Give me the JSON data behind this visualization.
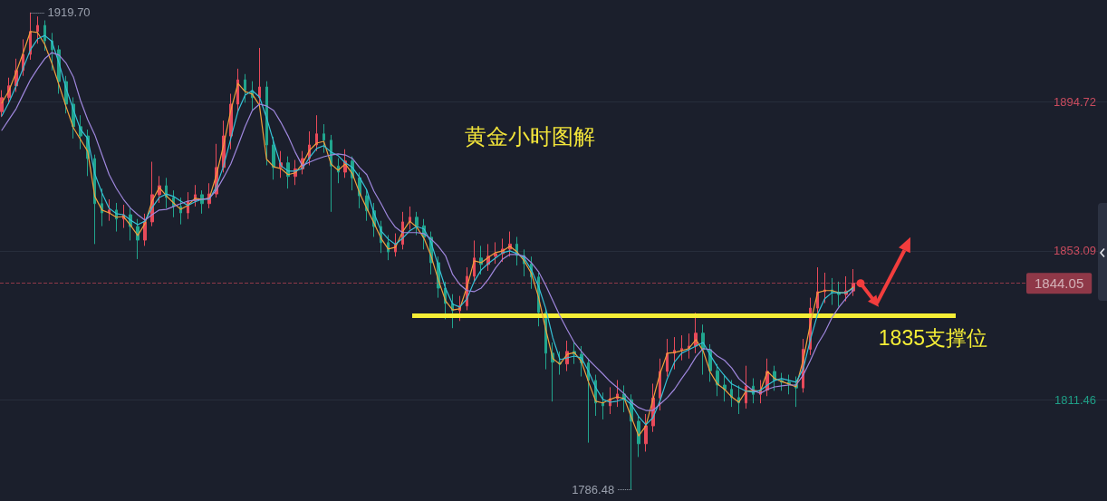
{
  "chart_data": {
    "type": "candlestick",
    "title": "黄金小时图解",
    "categories": [
      null,
      null,
      null,
      null,
      null,
      null,
      null,
      null,
      null,
      null,
      null,
      null,
      null,
      null,
      null,
      null,
      null,
      null,
      null,
      null,
      null,
      null,
      null,
      null,
      null,
      null,
      null,
      null,
      null,
      null,
      null,
      null,
      null,
      null,
      null,
      null,
      null,
      null,
      null,
      null,
      null,
      null,
      null,
      null,
      null,
      null,
      null,
      null,
      null,
      null,
      null,
      null,
      null,
      null,
      null,
      null,
      null,
      null,
      null,
      null,
      null,
      null,
      null,
      null,
      null,
      null,
      null,
      null,
      null,
      null,
      null,
      null,
      null,
      null,
      null,
      null,
      null,
      null,
      null,
      null,
      null,
      null,
      null,
      null,
      null,
      null,
      null,
      null,
      null,
      null,
      null,
      null,
      null,
      null,
      null,
      null,
      null,
      null,
      null,
      null,
      null,
      null,
      null,
      null,
      null,
      null,
      null,
      null,
      null,
      null,
      null,
      null,
      null,
      null,
      null,
      null,
      null,
      null,
      null,
      null
    ],
    "ohlc": [
      [
        1892.0,
        1898.0,
        1890.5,
        1895.9
      ],
      [
        1895.9,
        1901.5,
        1894.2,
        1899.2
      ],
      [
        1899.2,
        1906.8,
        1897.5,
        1903.5
      ],
      [
        1903.5,
        1912.2,
        1902.0,
        1908.0
      ],
      [
        1908.0,
        1919.7,
        1906.5,
        1914.4
      ],
      [
        1914.4,
        1918.6,
        1911.0,
        1916.1
      ],
      [
        1916.1,
        1917.5,
        1909.0,
        1911.8
      ],
      [
        1911.8,
        1914.0,
        1903.5,
        1909.3
      ],
      [
        1909.3,
        1910.5,
        1897.0,
        1900.4
      ],
      [
        1900.4,
        1902.0,
        1891.5,
        1894.1
      ],
      [
        1894.1,
        1896.0,
        1884.5,
        1887.8
      ],
      [
        1887.8,
        1891.0,
        1881.5,
        1885.2
      ],
      [
        1885.2,
        1887.0,
        1874.0,
        1878.9
      ],
      [
        1878.9,
        1880.0,
        1855.0,
        1866.3
      ],
      [
        1866.3,
        1870.5,
        1860.0,
        1863.7
      ],
      [
        1863.7,
        1867.5,
        1861.5,
        1864.5
      ],
      [
        1864.5,
        1866.5,
        1858.5,
        1862.0
      ],
      [
        1862.0,
        1866.0,
        1859.5,
        1863.2
      ],
      [
        1863.2,
        1865.0,
        1856.0,
        1859.9
      ],
      [
        1859.9,
        1862.0,
        1850.8,
        1856.1
      ],
      [
        1856.1,
        1863.5,
        1854.5,
        1861.2
      ],
      [
        1861.2,
        1878.0,
        1860.0,
        1868.8
      ],
      [
        1868.8,
        1874.0,
        1866.5,
        1871.3
      ],
      [
        1871.3,
        1873.5,
        1865.0,
        1868.0
      ],
      [
        1868.0,
        1870.0,
        1862.5,
        1865.5
      ],
      [
        1865.5,
        1868.0,
        1860.5,
        1863.7
      ],
      [
        1863.7,
        1869.5,
        1862.0,
        1867.0
      ],
      [
        1867.0,
        1871.5,
        1865.5,
        1868.8
      ],
      [
        1868.8,
        1870.0,
        1863.5,
        1866.3
      ],
      [
        1866.3,
        1872.0,
        1865.0,
        1869.0
      ],
      [
        1869.0,
        1883.0,
        1868.0,
        1876.4
      ],
      [
        1876.4,
        1889.5,
        1875.0,
        1885.2
      ],
      [
        1885.2,
        1897.0,
        1881.5,
        1894.1
      ],
      [
        1894.1,
        1904.0,
        1892.0,
        1900.9
      ],
      [
        1900.9,
        1902.5,
        1894.5,
        1897.9
      ],
      [
        1897.9,
        1900.5,
        1892.5,
        1895.9
      ],
      [
        1895.9,
        1909.8,
        1893.5,
        1898.9
      ],
      [
        1898.9,
        1900.5,
        1877.0,
        1882.7
      ],
      [
        1882.7,
        1885.0,
        1873.0,
        1876.4
      ],
      [
        1876.4,
        1881.0,
        1873.5,
        1877.7
      ],
      [
        1877.7,
        1879.5,
        1870.5,
        1873.9
      ],
      [
        1873.9,
        1878.5,
        1871.5,
        1876.0
      ],
      [
        1876.0,
        1881.0,
        1874.5,
        1878.9
      ],
      [
        1878.9,
        1886.5,
        1877.0,
        1882.7
      ],
      [
        1882.7,
        1891.0,
        1881.0,
        1885.8
      ],
      [
        1885.8,
        1888.5,
        1880.5,
        1884.0
      ],
      [
        1884.0,
        1885.5,
        1864.0,
        1876.8
      ],
      [
        1876.8,
        1879.0,
        1872.0,
        1875.1
      ],
      [
        1875.1,
        1881.5,
        1873.5,
        1878.2
      ],
      [
        1878.2,
        1879.5,
        1870.0,
        1873.5
      ],
      [
        1873.5,
        1875.0,
        1865.0,
        1868.5
      ],
      [
        1868.5,
        1870.5,
        1861.5,
        1864.3
      ],
      [
        1864.3,
        1866.5,
        1857.0,
        1859.9
      ],
      [
        1859.9,
        1861.5,
        1852.5,
        1855.4
      ],
      [
        1855.4,
        1857.5,
        1850.5,
        1852.8
      ],
      [
        1852.8,
        1858.0,
        1851.5,
        1854.9
      ],
      [
        1854.9,
        1864.0,
        1853.5,
        1861.2
      ],
      [
        1861.2,
        1865.5,
        1859.0,
        1862.5
      ],
      [
        1862.5,
        1864.0,
        1857.5,
        1860.1
      ],
      [
        1860.1,
        1862.0,
        1853.5,
        1856.9
      ],
      [
        1856.9,
        1858.5,
        1846.5,
        1849.8
      ],
      [
        1849.8,
        1851.5,
        1840.0,
        1842.7
      ],
      [
        1842.7,
        1844.5,
        1834.0,
        1838.4
      ],
      [
        1838.4,
        1841.0,
        1831.5,
        1836.4
      ],
      [
        1836.4,
        1840.5,
        1833.5,
        1837.7
      ],
      [
        1837.7,
        1848.5,
        1836.5,
        1846.0
      ],
      [
        1846.0,
        1856.0,
        1844.5,
        1851.1
      ],
      [
        1851.1,
        1854.5,
        1846.5,
        1849.3
      ],
      [
        1849.3,
        1855.0,
        1847.5,
        1851.6
      ],
      [
        1851.6,
        1855.5,
        1849.5,
        1852.3
      ],
      [
        1852.3,
        1856.5,
        1850.0,
        1853.6
      ],
      [
        1853.6,
        1858.5,
        1851.5,
        1855.0
      ],
      [
        1855.0,
        1857.0,
        1849.0,
        1851.8
      ],
      [
        1851.8,
        1853.5,
        1846.0,
        1849.5
      ],
      [
        1849.5,
        1851.5,
        1842.5,
        1845.8
      ],
      [
        1845.8,
        1847.0,
        1832.0,
        1835.9
      ],
      [
        1835.9,
        1837.0,
        1820.0,
        1824.5
      ],
      [
        1824.5,
        1827.5,
        1811.0,
        1822.0
      ],
      [
        1822.0,
        1825.0,
        1818.5,
        1821.5
      ],
      [
        1821.5,
        1828.0,
        1819.5,
        1825.0
      ],
      [
        1825.0,
        1827.5,
        1821.5,
        1824.2
      ],
      [
        1824.2,
        1826.5,
        1818.0,
        1821.8
      ],
      [
        1821.8,
        1823.0,
        1799.5,
        1816.9
      ],
      [
        1816.9,
        1818.5,
        1807.0,
        1810.6
      ],
      [
        1810.6,
        1813.5,
        1806.0,
        1809.8
      ],
      [
        1809.8,
        1815.0,
        1807.5,
        1811.8
      ],
      [
        1811.8,
        1817.0,
        1809.5,
        1813.1
      ],
      [
        1813.1,
        1815.5,
        1808.0,
        1811.5
      ],
      [
        1811.5,
        1813.0,
        1786.48,
        1805.5
      ],
      [
        1805.5,
        1807.0,
        1795.5,
        1799.2
      ],
      [
        1799.2,
        1807.5,
        1797.0,
        1804.2
      ],
      [
        1804.2,
        1816.0,
        1802.5,
        1812.0
      ],
      [
        1812.0,
        1823.0,
        1808.5,
        1819.4
      ],
      [
        1819.4,
        1828.5,
        1818.0,
        1824.5
      ],
      [
        1824.5,
        1829.0,
        1820.0,
        1825.3
      ],
      [
        1825.3,
        1829.5,
        1822.5,
        1825.8
      ],
      [
        1825.8,
        1830.0,
        1823.0,
        1826.5
      ],
      [
        1826.5,
        1835.8,
        1824.5,
        1830.1
      ],
      [
        1830.1,
        1832.5,
        1818.5,
        1825.5
      ],
      [
        1825.5,
        1827.0,
        1816.5,
        1819.6
      ],
      [
        1819.6,
        1821.5,
        1812.5,
        1815.6
      ],
      [
        1815.6,
        1818.5,
        1811.0,
        1814.4
      ],
      [
        1814.4,
        1817.0,
        1809.5,
        1812.1
      ],
      [
        1812.1,
        1815.5,
        1807.5,
        1810.6
      ],
      [
        1810.6,
        1821.0,
        1809.0,
        1815.3
      ],
      [
        1815.3,
        1817.5,
        1810.5,
        1813.0
      ],
      [
        1813.0,
        1817.0,
        1810.5,
        1814.2
      ],
      [
        1814.2,
        1823.0,
        1812.5,
        1819.4
      ],
      [
        1819.4,
        1821.0,
        1814.0,
        1816.9
      ],
      [
        1816.9,
        1819.0,
        1814.0,
        1816.4
      ],
      [
        1816.4,
        1818.5,
        1813.0,
        1815.8
      ],
      [
        1815.8,
        1818.0,
        1809.5,
        1814.8
      ],
      [
        1814.8,
        1828.5,
        1813.5,
        1825.6
      ],
      [
        1825.6,
        1840.0,
        1824.0,
        1837.1
      ],
      [
        1837.1,
        1848.5,
        1835.5,
        1841.7
      ],
      [
        1841.7,
        1847.0,
        1838.5,
        1842.2
      ],
      [
        1842.2,
        1845.5,
        1838.0,
        1841.5
      ],
      [
        1841.5,
        1844.5,
        1837.5,
        1840.9
      ],
      [
        1840.9,
        1846.0,
        1839.0,
        1841.9
      ],
      [
        1841.9,
        1848.0,
        1840.5,
        1844.05
      ]
    ],
    "colors": [
      "#e84a5a",
      "#e84a5a",
      "#e84a5a",
      "#e84a5a",
      "#e84a5a",
      "#e84a5a",
      "#21a58e",
      "#21a58e",
      "#21a58e",
      "#21a58e",
      "#21a58e",
      "#21a58e",
      "#21a58e",
      "#21a58e",
      "#21a58e",
      "#e84a5a",
      "#21a58e",
      "#e84a5a",
      "#21a58e",
      "#21a58e",
      "#e84a5a",
      "#e84a5a",
      "#e84a5a",
      "#21a58e",
      "#21a58e",
      "#21a58e",
      "#e84a5a",
      "#e84a5a",
      "#21a58e",
      "#e84a5a",
      "#e84a5a",
      "#e84a5a",
      "#e84a5a",
      "#e84a5a",
      "#21a58e",
      "#21a58e",
      "#e84a5a",
      "#21a58e",
      "#21a58e",
      "#e84a5a",
      "#21a58e",
      "#e84a5a",
      "#e84a5a",
      "#e84a5a",
      "#e84a5a",
      "#21a58e",
      "#21a58e",
      "#21a58e",
      "#e84a5a",
      "#21a58e",
      "#21a58e",
      "#21a58e",
      "#21a58e",
      "#21a58e",
      "#21a58e",
      "#e84a5a",
      "#e84a5a",
      "#e84a5a",
      "#21a58e",
      "#21a58e",
      "#21a58e",
      "#21a58e",
      "#21a58e",
      "#21a58e",
      "#e84a5a",
      "#e84a5a",
      "#e84a5a",
      "#21a58e",
      "#e84a5a",
      "#e84a5a",
      "#e84a5a",
      "#e84a5a",
      "#21a58e",
      "#21a58e",
      "#21a58e",
      "#21a58e",
      "#21a58e",
      "#21a58e",
      "#21a58e",
      "#e84a5a",
      "#21a58e",
      "#21a58e",
      "#21a58e",
      "#21a58e",
      "#21a58e",
      "#e84a5a",
      "#e84a5a",
      "#21a58e",
      "#21a58e",
      "#21a58e",
      "#e84a5a",
      "#e84a5a",
      "#e84a5a",
      "#e84a5a",
      "#e84a5a",
      "#e84a5a",
      "#e84a5a",
      "#e84a5a",
      "#21a58e",
      "#21a58e",
      "#21a58e",
      "#21a58e",
      "#21a58e",
      "#21a58e",
      "#e84a5a",
      "#21a58e",
      "#e84a5a",
      "#e84a5a",
      "#21a58e",
      "#21a58e",
      "#21a58e",
      "#21a58e",
      "#e84a5a",
      "#e84a5a",
      "#e84a5a",
      "#e84a5a",
      "#21a58e",
      "#21a58e",
      "#e84a5a",
      "#e84a5a"
    ],
    "series": [
      {
        "type": "line",
        "color": "#f2a03c",
        "values": [
          1894.4,
          1897.9,
          1903.0,
          1908.5,
          1914.4,
          1914.1,
          1910.8,
          1905.5,
          1899.4,
          1893.3,
          1887.5,
          1884.2,
          1880.9,
          1868.3,
          1864.5,
          1863.7,
          1862.5,
          1862.7,
          1860.2,
          1857.4,
          1860.7,
          1867.0,
          1870.8,
          1868.5,
          1866.5,
          1864.7,
          1865.8,
          1867.8,
          1867.5,
          1867.8,
          1874.4,
          1882.7,
          1892.3,
          1899.9,
          1897.6,
          1896.9,
          1893.8,
          1878.7,
          1876.6,
          1876.1,
          1874.4,
          1874.9,
          1877.4,
          1881.2,
          1883.2,
          1883.7,
          1877.4,
          1875.6,
          1877.4,
          1874.6,
          1869.3,
          1865.0,
          1860.9,
          1856.6,
          1853.6,
          1854.1,
          1858.4,
          1861.4,
          1859.7,
          1856.6,
          1851.6,
          1845.0,
          1839.2,
          1836.6,
          1836.9,
          1843.0,
          1850.3,
          1849.8,
          1851.3,
          1852.6,
          1853.1,
          1854.4,
          1852.8,
          1850.3,
          1846.8,
          1840.2,
          1831.3,
          1823.0,
          1821.4,
          1824.2,
          1824.7,
          1822.2,
          1816.4,
          1811.1,
          1810.6,
          1811.6,
          1812.3,
          1811.8,
          1806.5,
          1801.4,
          1804.2,
          1811.6,
          1818.9,
          1824.5,
          1824.7,
          1825.2,
          1825.8,
          1828.3,
          1825.2,
          1819.2,
          1815.9,
          1814.4,
          1812.3,
          1810.8,
          1813.9,
          1814.1,
          1813.9,
          1819.4,
          1817.4,
          1816.6,
          1815.9,
          1815.1,
          1822.7,
          1832.8,
          1841.4,
          1842.0,
          1842.0,
          1841.4,
          1841.4,
          1843.0
        ]
      },
      {
        "type": "line",
        "color": "#36c2d8",
        "values": [
          1890.8,
          1894.6,
          1899.2,
          1904.2,
          1909.3,
          1912.3,
          1913.3,
          1911.6,
          1905.5,
          1898.4,
          1892.6,
          1887.0,
          1884.5,
          1874.6,
          1869.3,
          1865.0,
          1863.5,
          1863.2,
          1861.7,
          1860.4,
          1861.4,
          1865.2,
          1868.0,
          1869.0,
          1868.3,
          1867.0,
          1865.8,
          1866.8,
          1867.5,
          1867.5,
          1871.1,
          1876.9,
          1884.5,
          1892.1,
          1896.6,
          1897.9,
          1896.1,
          1890.3,
          1883.5,
          1876.9,
          1875.4,
          1875.4,
          1876.1,
          1879.2,
          1881.7,
          1882.5,
          1880.7,
          1879.7,
          1877.7,
          1876.4,
          1873.6,
          1870.1,
          1863.7,
          1858.7,
          1856.4,
          1854.9,
          1856.6,
          1858.7,
          1859.9,
          1859.2,
          1855.4,
          1849.0,
          1842.7,
          1838.2,
          1837.4,
          1839.7,
          1844.5,
          1847.8,
          1849.6,
          1851.1,
          1852.6,
          1853.1,
          1852.3,
          1851.1,
          1847.8,
          1843.2,
          1837.1,
          1828.8,
          1822.7,
          1823.2,
          1823.7,
          1823.2,
          1819.4,
          1814.9,
          1811.6,
          1810.8,
          1811.1,
          1811.8,
          1810.1,
          1806.8,
          1804.5,
          1806.5,
          1811.3,
          1817.4,
          1822.0,
          1824.5,
          1825.5,
          1826.5,
          1827.5,
          1824.0,
          1820.7,
          1818.2,
          1815.9,
          1814.9,
          1813.9,
          1813.6,
          1814.1,
          1815.6,
          1816.9,
          1817.4,
          1816.9,
          1816.4,
          1820.2,
          1828.3,
          1835.4,
          1839.7,
          1841.4,
          1841.4,
          1841.4,
          1842.7
        ]
      },
      {
        "type": "line",
        "color": "#9f87dd",
        "values": [
          1886.8,
          1889.8,
          1892.8,
          1896.9,
          1900.9,
          1904.0,
          1906.8,
          1908.5,
          1907.8,
          1905.5,
          1901.7,
          1895.1,
          1889.8,
          1885.5,
          1879.9,
          1874.4,
          1870.6,
          1867.5,
          1865.0,
          1863.2,
          1861.7,
          1863.2,
          1864.5,
          1864.7,
          1865.5,
          1866.3,
          1867.0,
          1867.3,
          1867.5,
          1867.8,
          1870.1,
          1873.6,
          1877.4,
          1882.5,
          1887.8,
          1892.3,
          1894.1,
          1893.6,
          1892.3,
          1889.0,
          1885.2,
          1880.7,
          1876.9,
          1877.9,
          1878.7,
          1879.4,
          1879.9,
          1880.2,
          1879.9,
          1878.9,
          1876.4,
          1874.4,
          1869.8,
          1866.3,
          1862.5,
          1859.7,
          1858.2,
          1858.2,
          1858.2,
          1857.9,
          1856.4,
          1854.4,
          1851.8,
          1846.5,
          1843.7,
          1842.0,
          1841.7,
          1842.7,
          1845.2,
          1848.3,
          1850.8,
          1852.1,
          1852.1,
          1851.6,
          1849.8,
          1847.3,
          1843.5,
          1839.2,
          1834.9,
          1831.1,
          1827.5,
          1825.0,
          1822.7,
          1820.7,
          1818.7,
          1816.6,
          1814.9,
          1813.1,
          1810.8,
          1809.3,
          1808.5,
          1808.5,
          1810.3,
          1812.1,
          1814.4,
          1817.4,
          1820.2,
          1823.5,
          1825.8,
          1825.5,
          1823.7,
          1822.5,
          1820.4,
          1817.4,
          1815.6,
          1814.1,
          1813.3,
          1814.4,
          1815.1,
          1815.4,
          1815.6,
          1815.6,
          1818.4,
          1822.5,
          1827.0,
          1830.3,
          1834.4,
          1837.4,
          1839.9,
          1842.2
        ]
      }
    ],
    "ylim": [
      1783.2,
      1923.2
    ],
    "yticks": [
      1811.46,
      1853.09,
      1894.72
    ],
    "ref_lines": [
      {
        "axis": "y",
        "value": 1844.05,
        "label": "1844.05",
        "color": "#dd4a5c",
        "line_style": "dashed"
      },
      {
        "axis": "y",
        "value": 1835,
        "label": "1835支撑位",
        "color": "#f5ee36",
        "line_style": "solid"
      }
    ],
    "annotations": [
      "1919.70",
      "1786.48"
    ],
    "grid": "y",
    "marker": "none",
    "tick_labels": "y"
  }
}
